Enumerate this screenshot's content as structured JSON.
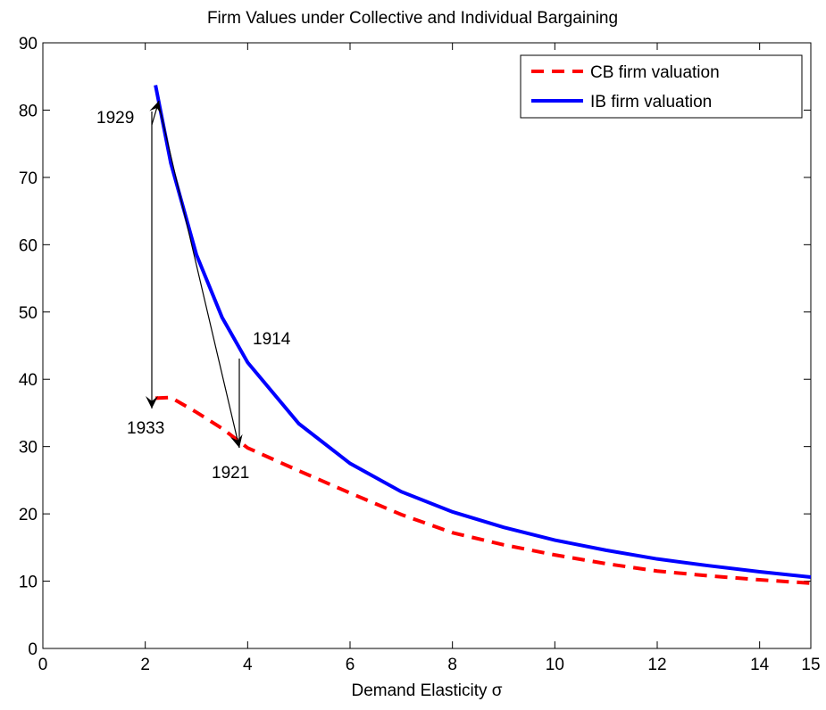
{
  "chart_data": {
    "type": "line",
    "title": "Firm Values under Collective and Individual Bargaining",
    "x_label": "Demand Elasticity σ",
    "x": [
      2.2,
      2.5,
      3,
      3.5,
      4,
      5,
      6,
      7,
      8,
      9,
      10,
      11,
      12,
      13,
      14,
      15
    ],
    "series": [
      {
        "name": "CB firm valuation",
        "color": "#ff0000",
        "dash": true,
        "values": [
          37.2,
          37.3,
          35.1,
          32.7,
          29.8,
          26.4,
          23.1,
          19.9,
          17.2,
          15.4,
          13.9,
          12.6,
          11.5,
          10.8,
          10.2,
          9.7
        ]
      },
      {
        "name": "IB firm valuation",
        "color": "#0000ff",
        "dash": false,
        "values": [
          83.7,
          72.1,
          58.5,
          49.2,
          42.5,
          33.4,
          27.5,
          23.3,
          20.3,
          18.0,
          16.1,
          14.6,
          13.3,
          12.3,
          11.4,
          10.6
        ]
      }
    ],
    "xlim": [
      0,
      15
    ],
    "xticks": [
      0,
      2,
      4,
      6,
      8,
      10,
      12,
      14,
      15
    ],
    "ylim": [
      0,
      90
    ],
    "yticks": [
      0,
      10,
      20,
      30,
      40,
      50,
      60,
      70,
      80,
      90
    ],
    "grid": false,
    "legend_position": "upper-right",
    "annotations": [
      "1929",
      "1933",
      "1921",
      "1914"
    ]
  }
}
